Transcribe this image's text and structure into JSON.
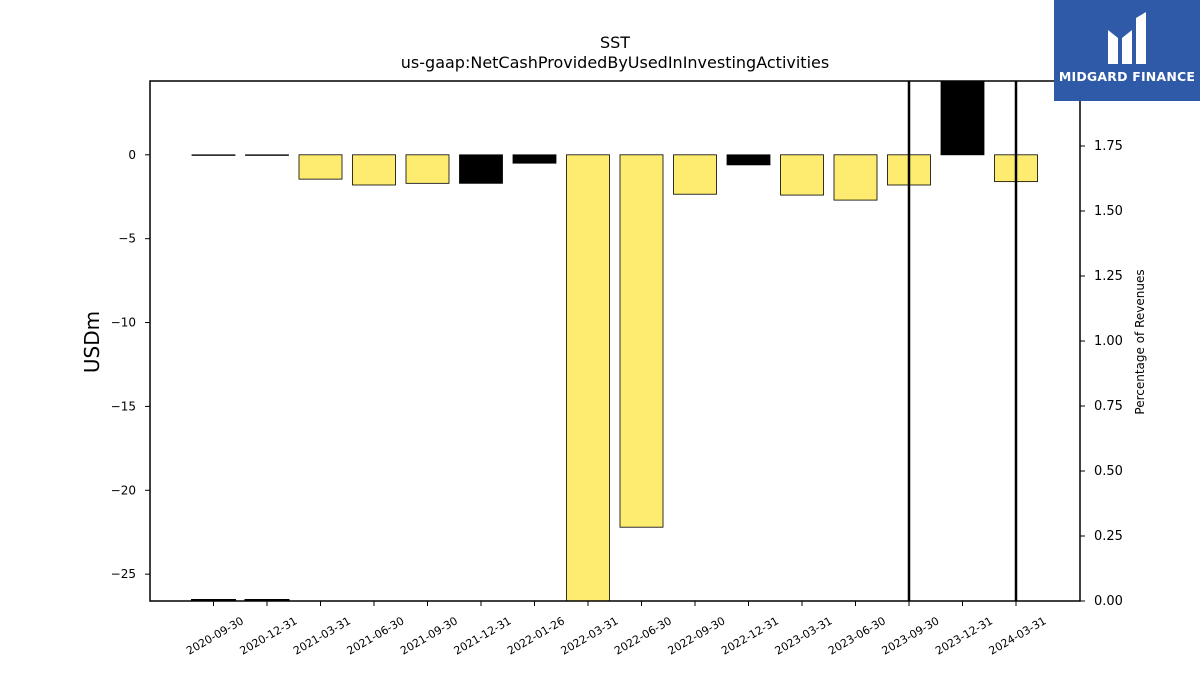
{
  "chart_data": {
    "type": "bar",
    "title": "SST",
    "subtitle": "us-gaap:NetCashProvidedByUsedInInvestingActivities",
    "ylabel": "USDm",
    "y2label": "Percentage of Revenues",
    "categories": [
      "2020-09-30",
      "2020-12-31",
      "2021-03-31",
      "2021-06-30",
      "2021-09-30",
      "2021-12-31",
      "2022-01-26",
      "2022-03-31",
      "2022-06-30",
      "2022-09-30",
      "2022-12-31",
      "2023-03-31",
      "2023-06-30",
      "2023-09-30",
      "2023-12-31",
      "2024-03-31"
    ],
    "values": [
      0.0,
      0.0,
      -1.45,
      -1.8,
      -1.7,
      -1.7,
      -0.5,
      -26.6,
      -22.2,
      -2.35,
      -0.6,
      -2.4,
      -2.7,
      -1.8,
      4.4,
      -1.6
    ],
    "bar_colors": [
      "#fdec6f",
      "#fdec6f",
      "#fdec6f",
      "#fdec6f",
      "#fdec6f",
      "#000000",
      "#000000",
      "#fdec6f",
      "#fdec6f",
      "#fdec6f",
      "#000000",
      "#fdec6f",
      "#fdec6f",
      "#fdec6f",
      "#000000",
      "#fdec6f"
    ],
    "pct_of_revenues": [
      0.0,
      0.0,
      null,
      null,
      null,
      null,
      null,
      null,
      null,
      null,
      null,
      null,
      null,
      2.0,
      null,
      2.0
    ],
    "ylim": [
      -26.6,
      4.4
    ],
    "y2lim": [
      0.0,
      2.0
    ],
    "yticks": [
      0,
      -5,
      -10,
      -15,
      -20,
      -25
    ],
    "y2ticks": [
      "0.00",
      "0.25",
      "0.50",
      "0.75",
      "1.00",
      "1.25",
      "1.50",
      "1.75"
    ]
  },
  "logo": {
    "text": "MIDGARD FINANCE",
    "color": "#2f5aa8"
  }
}
